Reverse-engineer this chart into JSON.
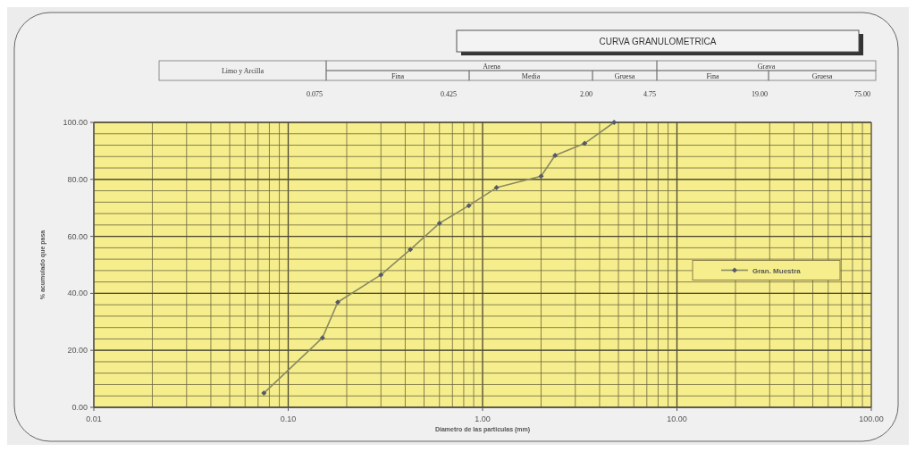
{
  "chart_data": {
    "type": "line",
    "title": "CURVA GRANULOMETRICA",
    "xlabel": "Diametro de las particulas (mm)",
    "ylabel": "% acumulado que pasa",
    "annotations": [
      "Limo y Arcilla",
      "Arena",
      "Fina",
      "Media",
      "Gruesa",
      "Grava",
      "Fina",
      "Gruesa",
      "0.075",
      "0.425",
      "2.00",
      "4.75",
      "19.00",
      "75.00"
    ],
    "log": "x",
    "xlim": [
      0.01,
      100
    ],
    "xticks": [
      {
        "value": 0.01,
        "label": "0.01"
      },
      {
        "value": 0.1,
        "label": "0.10"
      },
      {
        "value": 1,
        "label": "1.00"
      },
      {
        "value": 10,
        "label": "10.00"
      },
      {
        "value": 100,
        "label": "100.00"
      }
    ],
    "ylim": [
      0,
      100
    ],
    "yticks": [
      {
        "value": 0,
        "label": "0.00"
      },
      {
        "value": 20,
        "label": "20.00"
      },
      {
        "value": 40,
        "label": "40.00"
      },
      {
        "value": 60,
        "label": "60.00"
      },
      {
        "value": 80,
        "label": "80.00"
      },
      {
        "value": 100,
        "label": "100.00"
      }
    ],
    "grid": true,
    "legend": "right",
    "marker": "diamond",
    "line_style": "solid",
    "series": [
      {
        "name": "Gran. Muestra",
        "color": "#8a8a60",
        "x": [
          0.075,
          0.15,
          0.18,
          0.3,
          0.425,
          0.6,
          0.85,
          1.18,
          2.0,
          2.36,
          3.35,
          4.75
        ],
        "values": [
          5,
          24.4,
          36.9,
          46.5,
          55.4,
          64.6,
          70.8,
          77.1,
          81.1,
          88.4,
          92.6,
          100
        ]
      }
    ]
  }
}
